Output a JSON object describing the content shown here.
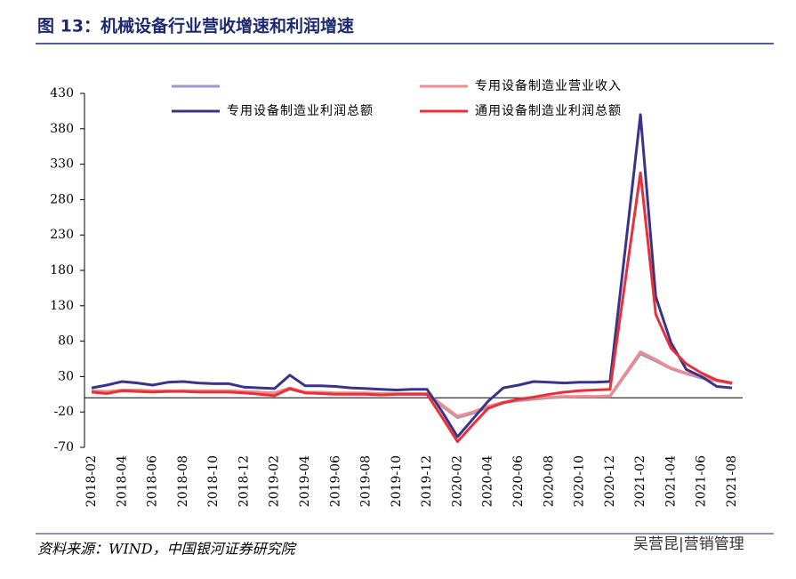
{
  "chart_data": {
    "type": "line",
    "title": "图 13：机械设备行业营收增速和利润增速",
    "categories": [
      "2018-02",
      null,
      "2018-04",
      null,
      "2018-06",
      null,
      "2018-08",
      null,
      "2018-10",
      null,
      "2018-12",
      null,
      "2019-02",
      null,
      "2019-04",
      null,
      "2019-06",
      null,
      "2019-08",
      null,
      "2019-10",
      null,
      "2019-12",
      null,
      "2020-02",
      null,
      "2020-04",
      null,
      "2020-06",
      null,
      "2020-08",
      null,
      "2020-10",
      null,
      "2020-12",
      null,
      "2021-02",
      null,
      "2021-04",
      null,
      "2021-06",
      null,
      "2021-08"
    ],
    "series": [
      {
        "color": "#9b98cc",
        "values": [
          9,
          8,
          10,
          10,
          9,
          9,
          10,
          9,
          9,
          9,
          9,
          8,
          6,
          12,
          7,
          7,
          6,
          6,
          6,
          5,
          5,
          5,
          5,
          -12,
          -28,
          -22,
          -14,
          -7,
          -4,
          -2,
          0,
          1,
          2,
          2,
          2,
          32,
          62,
          52,
          41,
          34,
          28,
          24,
          20
        ]
      },
      {
        "name": "专用设备制造业营业收入",
        "color": "#f08c8c",
        "values": [
          10,
          9,
          11,
          11,
          10,
          10,
          10,
          10,
          10,
          10,
          9,
          8,
          7,
          14,
          8,
          8,
          7,
          7,
          7,
          6,
          6,
          6,
          6,
          -10,
          -26,
          -20,
          -12,
          -6,
          -2,
          0,
          1,
          2,
          2,
          2,
          3,
          34,
          65,
          54,
          42,
          35,
          30,
          25,
          21
        ]
      },
      {
        "name": "专用设备制造业利润总额",
        "color": "#3a3488",
        "values": [
          14,
          18,
          23,
          21,
          18,
          22,
          23,
          21,
          20,
          20,
          15,
          14,
          13,
          32,
          17,
          17,
          16,
          14,
          13,
          12,
          11,
          12,
          12,
          -20,
          -55,
          -30,
          -5,
          14,
          18,
          23,
          22,
          21,
          22,
          22,
          23,
          210,
          400,
          143,
          78,
          40,
          30,
          16,
          14
        ]
      },
      {
        "name": "通用设备制造业利润总额",
        "color": "#e8303a",
        "values": [
          8,
          6,
          10,
          9,
          8,
          9,
          9,
          8,
          8,
          8,
          7,
          5,
          3,
          13,
          7,
          6,
          5,
          5,
          5,
          4,
          5,
          5,
          5,
          -28,
          -62,
          -38,
          -15,
          -7,
          -2,
          1,
          5,
          8,
          10,
          11,
          12,
          165,
          318,
          118,
          70,
          48,
          35,
          25,
          21
        ]
      }
    ],
    "ylim": [
      -70,
      430
    ],
    "yticks": [
      -70,
      -20,
      30,
      80,
      130,
      180,
      230,
      280,
      330,
      380,
      430
    ]
  },
  "source": "资料来源：WIND，中国银河证券研究院",
  "watermark": "吴营昆|营销管理"
}
